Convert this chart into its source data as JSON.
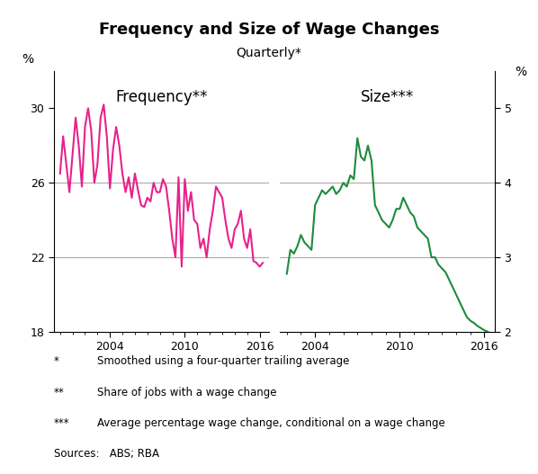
{
  "title": "Frequency and Size of Wage Changes",
  "subtitle": "Quarterly*",
  "left_label": "Frequency**",
  "right_label": "Size***",
  "left_ylabel": "%",
  "right_ylabel": "%",
  "left_ylim": [
    18,
    32
  ],
  "right_ylim": [
    2,
    5.5
  ],
  "left_yticks": [
    18,
    22,
    26,
    30
  ],
  "right_yticks": [
    2,
    3,
    4,
    5
  ],
  "left_color": "#E8218C",
  "right_color": "#1E8B3C",
  "footnotes": [
    [
      "*",
      "Smoothed using a four-quarter trailing average"
    ],
    [
      "**",
      "Share of jobs with a wage change"
    ],
    [
      "***",
      "Average percentage wage change, conditional on a wage change"
    ]
  ],
  "sources": "Sources:   ABS; RBA",
  "freq_x": [
    2000.0,
    2000.25,
    2000.5,
    2000.75,
    2001.0,
    2001.25,
    2001.5,
    2001.75,
    2002.0,
    2002.25,
    2002.5,
    2002.75,
    2003.0,
    2003.25,
    2003.5,
    2003.75,
    2004.0,
    2004.25,
    2004.5,
    2004.75,
    2005.0,
    2005.25,
    2005.5,
    2005.75,
    2006.0,
    2006.25,
    2006.5,
    2006.75,
    2007.0,
    2007.25,
    2007.5,
    2007.75,
    2008.0,
    2008.25,
    2008.5,
    2008.75,
    2009.0,
    2009.25,
    2009.5,
    2009.75,
    2010.0,
    2010.25,
    2010.5,
    2010.75,
    2011.0,
    2011.25,
    2011.5,
    2011.75,
    2012.0,
    2012.25,
    2012.5,
    2012.75,
    2013.0,
    2013.25,
    2013.5,
    2013.75,
    2014.0,
    2014.25,
    2014.5,
    2014.75,
    2015.0,
    2015.25,
    2015.5,
    2015.75,
    2016.0,
    2016.25
  ],
  "freq_y": [
    26.5,
    28.5,
    27.0,
    25.5,
    27.5,
    29.5,
    28.0,
    25.8,
    29.0,
    30.0,
    28.8,
    26.0,
    27.0,
    29.5,
    30.2,
    28.5,
    25.7,
    27.8,
    29.0,
    28.0,
    26.5,
    25.5,
    26.3,
    25.2,
    26.5,
    25.6,
    24.8,
    24.7,
    25.2,
    25.0,
    26.0,
    25.5,
    25.5,
    26.2,
    25.8,
    24.5,
    23.0,
    22.0,
    26.3,
    21.5,
    26.2,
    24.5,
    25.5,
    24.0,
    23.8,
    22.5,
    23.0,
    22.0,
    23.5,
    24.5,
    25.8,
    25.5,
    25.2,
    24.0,
    23.0,
    22.5,
    23.5,
    23.8,
    24.5,
    23.0,
    22.5,
    23.5,
    21.8,
    21.7,
    21.5,
    21.7
  ],
  "size_x": [
    2002.0,
    2002.25,
    2002.5,
    2002.75,
    2003.0,
    2003.25,
    2003.5,
    2003.75,
    2004.0,
    2004.25,
    2004.5,
    2004.75,
    2005.0,
    2005.25,
    2005.5,
    2005.75,
    2006.0,
    2006.25,
    2006.5,
    2006.75,
    2007.0,
    2007.25,
    2007.5,
    2007.75,
    2008.0,
    2008.25,
    2008.5,
    2008.75,
    2009.0,
    2009.25,
    2009.5,
    2009.75,
    2010.0,
    2010.25,
    2010.5,
    2010.75,
    2011.0,
    2011.25,
    2011.5,
    2011.75,
    2012.0,
    2012.25,
    2012.5,
    2012.75,
    2013.0,
    2013.25,
    2013.5,
    2013.75,
    2014.0,
    2014.25,
    2014.5,
    2014.75,
    2015.0,
    2015.25,
    2015.5,
    2015.75,
    2016.0,
    2016.25
  ],
  "size_y": [
    2.78,
    3.1,
    3.05,
    3.15,
    3.3,
    3.2,
    3.15,
    3.1,
    3.7,
    3.8,
    3.9,
    3.85,
    3.9,
    3.95,
    3.85,
    3.9,
    4.0,
    3.95,
    4.1,
    4.05,
    4.6,
    4.35,
    4.3,
    4.5,
    4.3,
    3.7,
    3.6,
    3.5,
    3.45,
    3.4,
    3.5,
    3.65,
    3.65,
    3.8,
    3.7,
    3.6,
    3.55,
    3.4,
    3.35,
    3.3,
    3.25,
    3.0,
    3.0,
    2.9,
    2.85,
    2.8,
    2.7,
    2.6,
    2.5,
    2.4,
    2.3,
    2.2,
    2.15,
    2.12,
    2.08,
    2.05,
    2.02,
    2.0
  ]
}
